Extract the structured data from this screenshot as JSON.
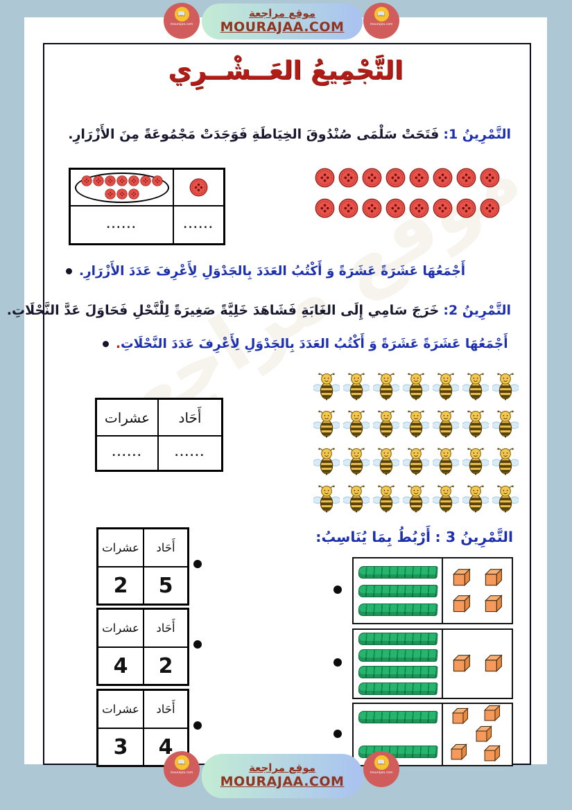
{
  "banner": {
    "site_name": "موقع مراجعة",
    "site_url": "MOURAJAA.COM",
    "badge_url": "mourajaa.com",
    "badge_glyph": "📖"
  },
  "title": {
    "text": "التَّجْمِيعُ العَــشْــرِي"
  },
  "ex1": {
    "label": "التَّمْرِينُ 1:",
    "statement": "فَتَحَتْ سَلْمَى صُنْدُوقَ الخِيَاطَةِ فَوَجَدَتْ مَجْمُوعَةً مِنَ الأَزْرَارِ.",
    "bullet": "أَجْمَعُهَا عَشَرَةً عَشَرَةً وَ أَكْتُبُ العَدَدَ بِالجَدْوَلِ لِأَعْرِفَ عَدَدَ الأَزْرَارِ.",
    "table": {
      "grouped_buttons": 10,
      "single_buttons": 1,
      "dots_left": "......",
      "dots_right": "......"
    },
    "button_rows": 2,
    "buttons_per_row": 8
  },
  "ex2": {
    "label": "التَّمْرِينُ 2:",
    "statement": "خَرَجَ سَامِي إِلَى الغَابَةِ فَشَاهَدَ خَلِيَّةً صَغِيرَةً لِلْنَّحْلِ فَحَاوَلَ عَدَّ النَّحْلَاتِ.",
    "bullet": "أَجْمَعُهَا عَشَرَةً عَشَرَةً وَ أَكْتُبُ العَدَدَ بِالجَدْوَلِ لِأَعْرِفَ عَدَدَ النَّحْلَاتِ",
    "bullet_period": ".",
    "table": {
      "tens_label": "عشرات",
      "ones_label": "أَحَاد",
      "tens_value": "......",
      "ones_value": "......"
    },
    "bee_rows": 4,
    "bees_per_row": 7
  },
  "ex3": {
    "label": "التَّمْرِينُ 3 :",
    "statement": "أَرْبُطُ بِمَا يُنَاسِبُ:",
    "tens_label": "عشرات",
    "ones_label": "أَحَاد",
    "tables": [
      {
        "tens": "2",
        "ones": "5"
      },
      {
        "tens": "4",
        "ones": "2"
      },
      {
        "tens": "3",
        "ones": "4"
      }
    ],
    "blocks": [
      {
        "rods": 3,
        "cubes": 4
      },
      {
        "rods": 4,
        "cubes": 2
      },
      {
        "rods": 2,
        "cubes": 5
      }
    ]
  }
}
